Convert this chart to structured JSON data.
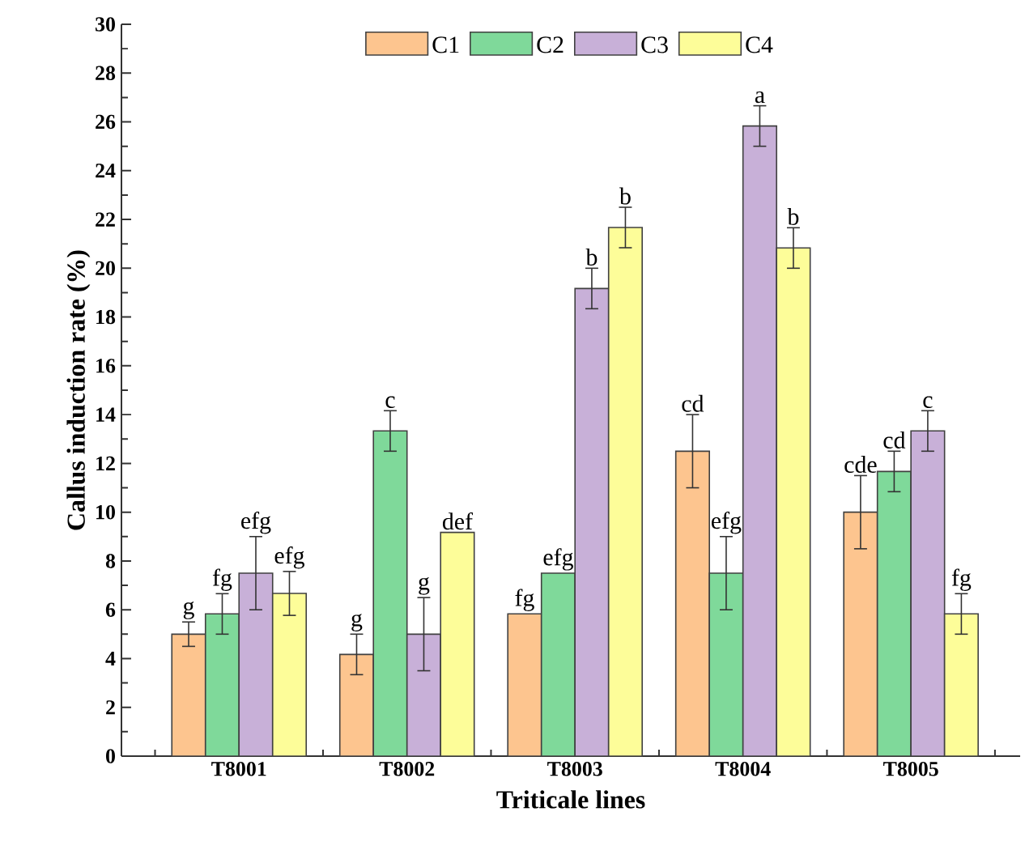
{
  "chart_data": {
    "type": "bar",
    "xlabel": "Triticale lines",
    "ylabel": "Callus induction rate (%)",
    "categories": [
      "T8001",
      "T8002",
      "T8003",
      "T8004",
      "T8005"
    ],
    "ylim": [
      0,
      30
    ],
    "yticks": [
      0,
      2,
      4,
      6,
      8,
      10,
      12,
      14,
      16,
      18,
      20,
      22,
      24,
      26,
      28,
      30
    ],
    "legend": "top",
    "series": [
      {
        "name": "C1",
        "color": "#fdc58f",
        "values": [
          5.0,
          4.17,
          5.83,
          12.5,
          10.0
        ],
        "errors": [
          0.5,
          0.83,
          null,
          1.5,
          1.5
        ],
        "value_labels": [
          "g",
          "g",
          "fg",
          "cd",
          "cde"
        ]
      },
      {
        "name": "C2",
        "color": "#7fd99a",
        "values": [
          5.83,
          13.33,
          7.5,
          7.5,
          11.67
        ],
        "errors": [
          0.83,
          0.83,
          null,
          1.5,
          0.83
        ],
        "value_labels": [
          "fg",
          "c",
          "efg",
          "efg",
          "cd"
        ]
      },
      {
        "name": "C3",
        "color": "#c8b0d8",
        "values": [
          7.5,
          5.0,
          19.17,
          25.83,
          13.33
        ],
        "errors": [
          1.5,
          1.5,
          0.83,
          0.83,
          0.83
        ],
        "value_labels": [
          "efg",
          "g",
          "b",
          "a",
          "c"
        ]
      },
      {
        "name": "C4",
        "color": "#fdfd99",
        "values": [
          6.67,
          9.17,
          21.67,
          20.83,
          5.83
        ],
        "errors": [
          0.9,
          null,
          0.83,
          0.83,
          0.83
        ],
        "value_labels": [
          "efg",
          "def",
          "b",
          "b",
          "fg"
        ]
      }
    ]
  }
}
